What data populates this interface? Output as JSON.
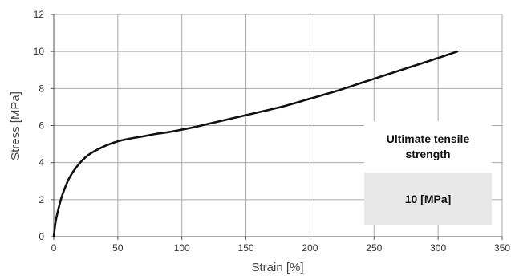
{
  "chart_data": {
    "type": "line",
    "xlabel": "Strain [%]",
    "ylabel": "Stress  [MPa]",
    "xlim": [
      0,
      350
    ],
    "ylim": [
      0,
      12
    ],
    "x_ticks": [
      0,
      50,
      100,
      150,
      200,
      250,
      300,
      350
    ],
    "y_ticks": [
      0,
      2,
      4,
      6,
      8,
      10,
      12
    ],
    "grid": true,
    "series": [
      {
        "x": [
          0,
          1,
          2,
          4,
          6,
          8,
          10,
          12,
          15,
          20,
          25,
          30,
          40,
          50,
          60,
          70,
          80,
          90,
          100,
          110,
          120,
          140,
          160,
          180,
          200,
          220,
          240,
          260,
          280,
          300,
          315
        ],
        "y": [
          0,
          0.6,
          1.0,
          1.6,
          2.1,
          2.5,
          2.85,
          3.15,
          3.5,
          3.95,
          4.3,
          4.55,
          4.9,
          5.15,
          5.3,
          5.42,
          5.55,
          5.65,
          5.78,
          5.92,
          6.08,
          6.4,
          6.72,
          7.05,
          7.45,
          7.85,
          8.3,
          8.75,
          9.2,
          9.65,
          10.0
        ],
        "color": "#111111"
      }
    ],
    "annotations": [
      {
        "label": "Ultimate tensile strength",
        "value": "10 [MPa]"
      }
    ]
  }
}
